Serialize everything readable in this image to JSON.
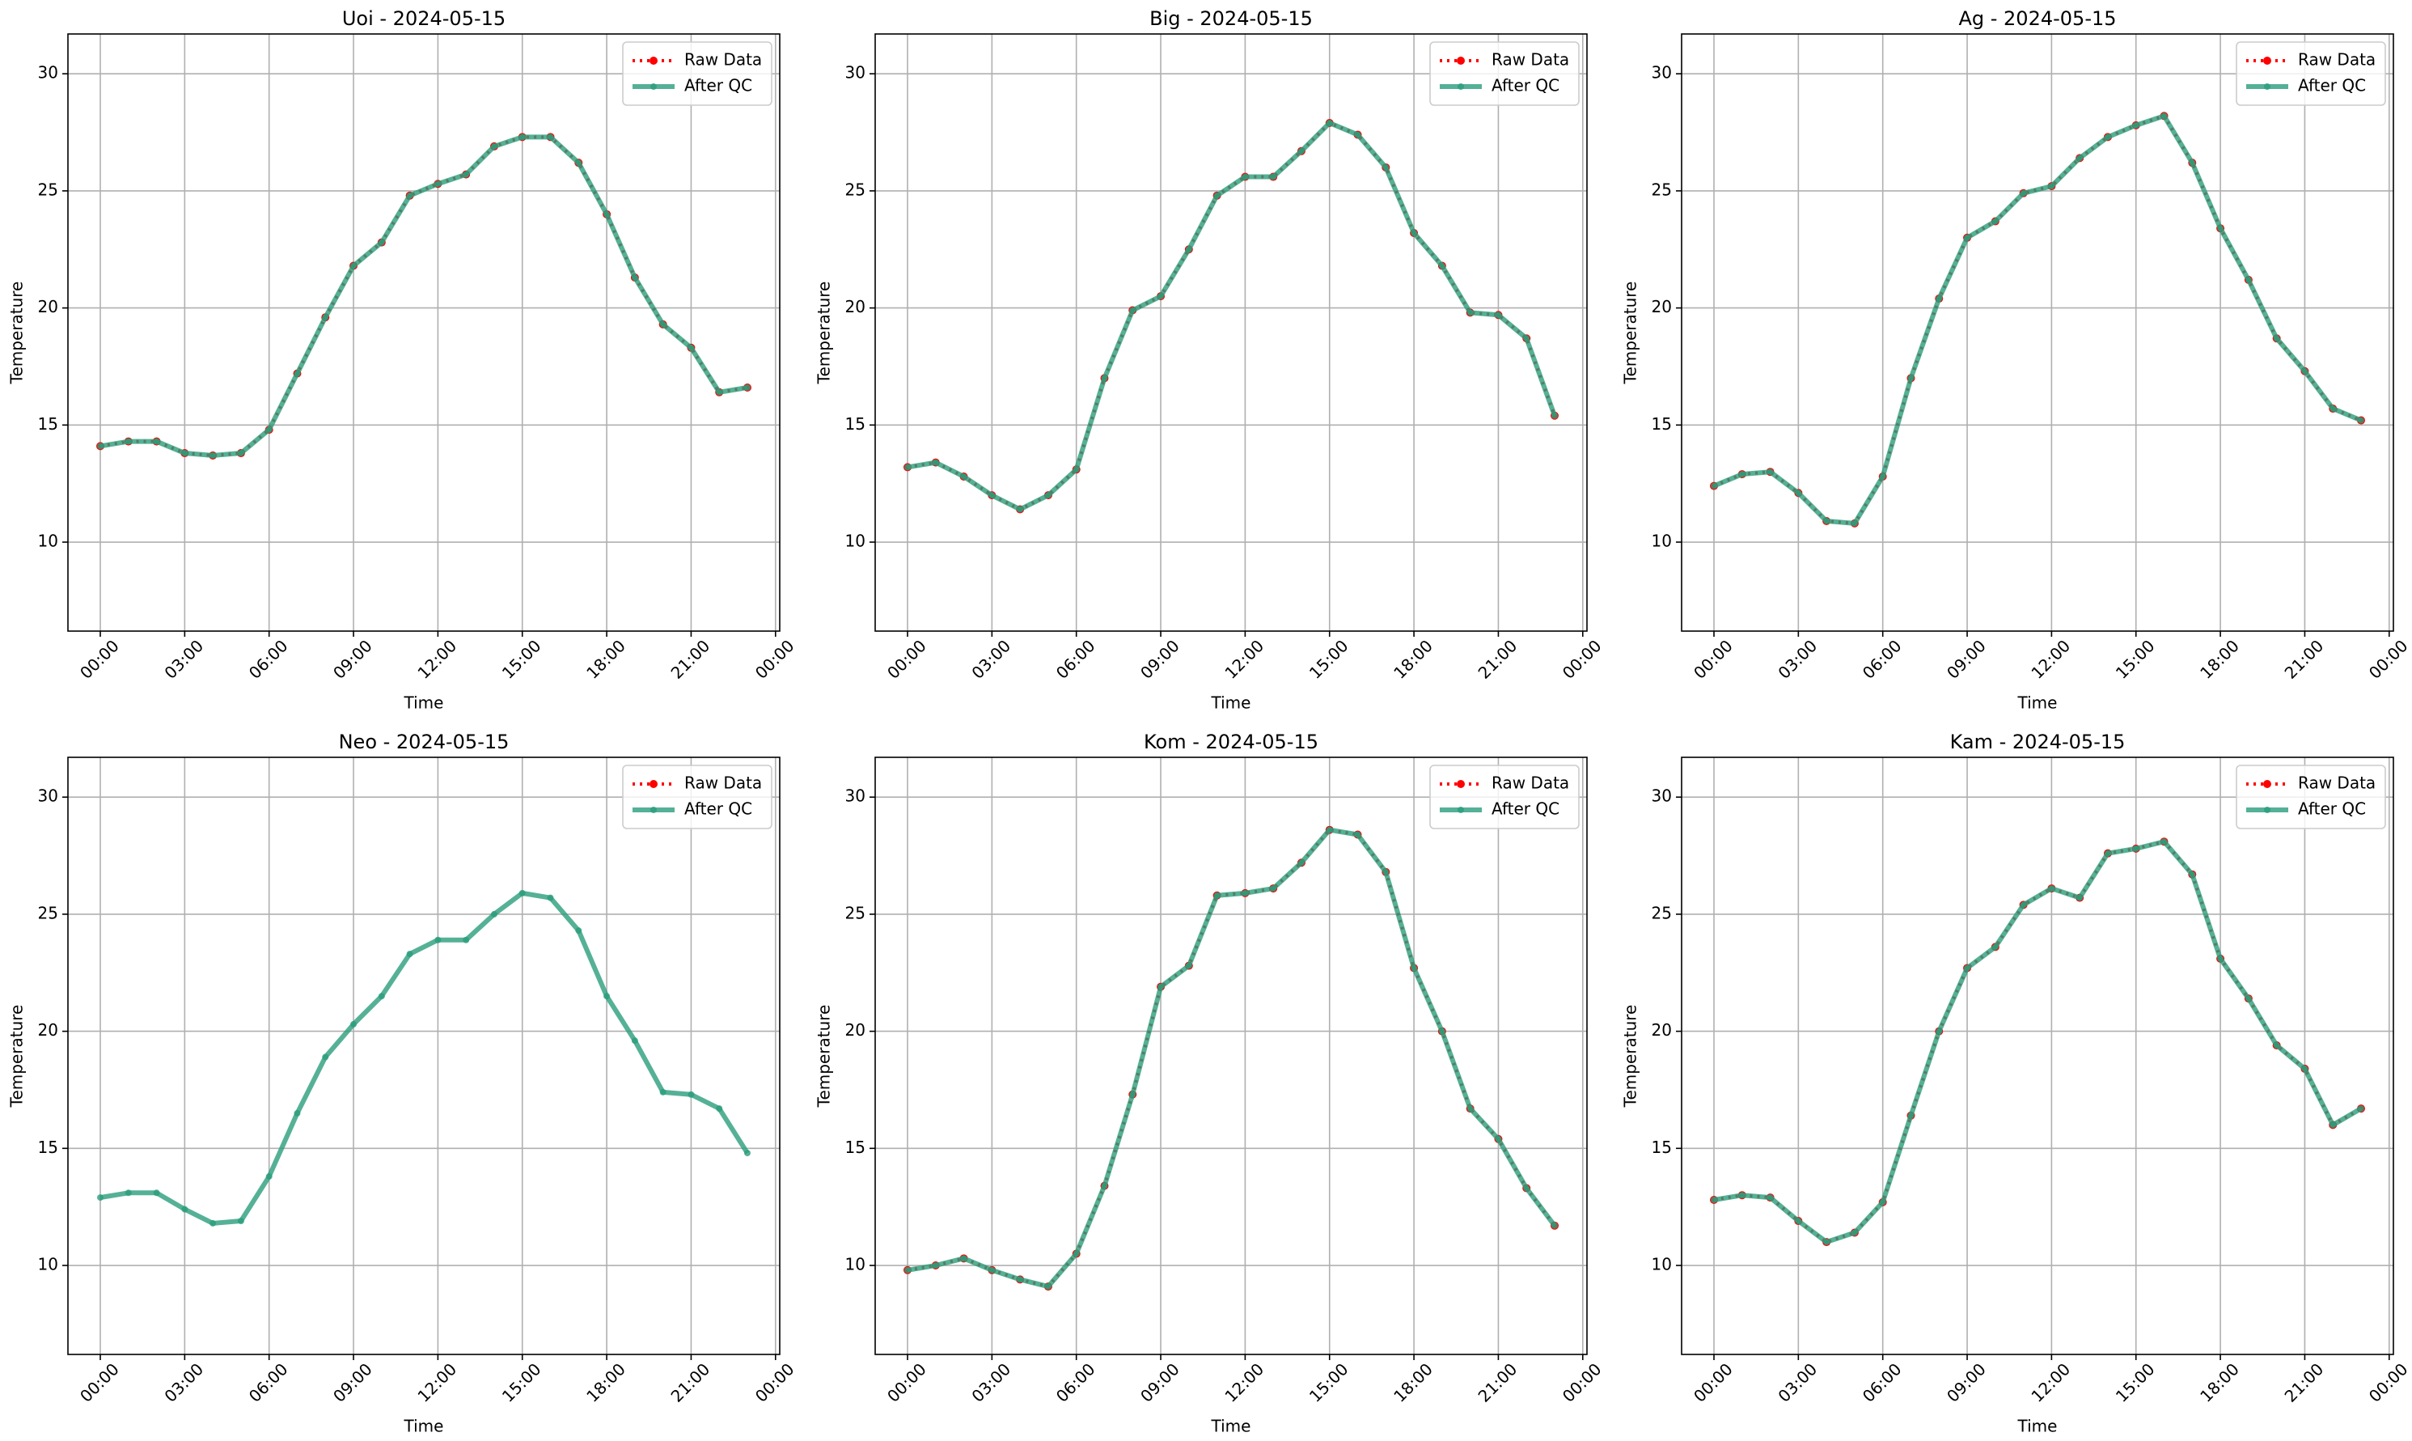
{
  "chart_data": [
    {
      "type": "line",
      "title": "Uoi - 2024-05-15",
      "xlabel": "Time",
      "ylabel": "Temperature",
      "x": [
        0,
        1,
        2,
        3,
        4,
        5,
        6,
        7,
        8,
        9,
        10,
        11,
        12,
        13,
        14,
        15,
        16,
        17,
        18,
        19,
        20,
        21,
        22,
        23
      ],
      "xlim": [
        -1.15,
        24.15
      ],
      "xticks": [
        {
          "value": 0,
          "label": "00:00"
        },
        {
          "value": 3,
          "label": "03:00"
        },
        {
          "value": 6,
          "label": "06:00"
        },
        {
          "value": 9,
          "label": "09:00"
        },
        {
          "value": 12,
          "label": "12:00"
        },
        {
          "value": 15,
          "label": "15:00"
        },
        {
          "value": 18,
          "label": "18:00"
        },
        {
          "value": 21,
          "label": "21:00"
        },
        {
          "value": 24,
          "label": "00:00"
        }
      ],
      "ylim": [
        6.2,
        31.7
      ],
      "yticks": [
        10,
        15,
        20,
        25,
        30
      ],
      "grid": true,
      "legend": "upper right",
      "series": [
        {
          "name": "Raw Data",
          "color": "#ff0000",
          "values": [
            14.1,
            14.3,
            14.3,
            13.8,
            13.7,
            13.8,
            14.8,
            17.2,
            19.6,
            21.8,
            22.8,
            24.8,
            25.3,
            25.7,
            26.9,
            27.3,
            27.3,
            26.2,
            24.0,
            21.3,
            19.3,
            18.3,
            16.4,
            16.6
          ]
        },
        {
          "name": "After QC",
          "color": "#2a9d7c",
          "values": [
            14.1,
            14.3,
            14.3,
            13.8,
            13.7,
            13.8,
            14.8,
            17.2,
            19.6,
            21.8,
            22.8,
            24.8,
            25.3,
            25.7,
            26.9,
            27.3,
            27.3,
            26.2,
            24.0,
            21.3,
            19.3,
            18.3,
            16.4,
            16.6
          ]
        }
      ]
    },
    {
      "type": "line",
      "title": "Big - 2024-05-15",
      "xlabel": "Time",
      "ylabel": "Temperature",
      "x": [
        0,
        1,
        2,
        3,
        4,
        5,
        6,
        7,
        8,
        9,
        10,
        11,
        12,
        13,
        14,
        15,
        16,
        17,
        18,
        19,
        20,
        21,
        22,
        23
      ],
      "xlim": [
        -1.15,
        24.15
      ],
      "xticks": [
        {
          "value": 0,
          "label": "00:00"
        },
        {
          "value": 3,
          "label": "03:00"
        },
        {
          "value": 6,
          "label": "06:00"
        },
        {
          "value": 9,
          "label": "09:00"
        },
        {
          "value": 12,
          "label": "12:00"
        },
        {
          "value": 15,
          "label": "15:00"
        },
        {
          "value": 18,
          "label": "18:00"
        },
        {
          "value": 21,
          "label": "21:00"
        },
        {
          "value": 24,
          "label": "00:00"
        }
      ],
      "ylim": [
        6.2,
        31.7
      ],
      "yticks": [
        10,
        15,
        20,
        25,
        30
      ],
      "grid": true,
      "legend": "upper right",
      "series": [
        {
          "name": "Raw Data",
          "color": "#ff0000",
          "values": [
            13.2,
            13.4,
            12.8,
            12.0,
            11.4,
            12.0,
            13.1,
            17.0,
            19.9,
            20.5,
            22.5,
            24.8,
            25.6,
            25.6,
            26.7,
            27.9,
            27.4,
            26.0,
            23.2,
            21.8,
            19.8,
            19.7,
            18.7,
            15.4
          ]
        },
        {
          "name": "After QC",
          "color": "#2a9d7c",
          "values": [
            13.2,
            13.4,
            12.8,
            12.0,
            11.4,
            12.0,
            13.1,
            17.0,
            19.9,
            20.5,
            22.5,
            24.8,
            25.6,
            25.6,
            26.7,
            27.9,
            27.4,
            26.0,
            23.2,
            21.8,
            19.8,
            19.7,
            18.7,
            15.4
          ]
        }
      ]
    },
    {
      "type": "line",
      "title": "Ag - 2024-05-15",
      "xlabel": "Time",
      "ylabel": "Temperature",
      "x": [
        0,
        1,
        2,
        3,
        4,
        5,
        6,
        7,
        8,
        9,
        10,
        11,
        12,
        13,
        14,
        15,
        16,
        17,
        18,
        19,
        20,
        21,
        22,
        23
      ],
      "xlim": [
        -1.15,
        24.15
      ],
      "xticks": [
        {
          "value": 0,
          "label": "00:00"
        },
        {
          "value": 3,
          "label": "03:00"
        },
        {
          "value": 6,
          "label": "06:00"
        },
        {
          "value": 9,
          "label": "09:00"
        },
        {
          "value": 12,
          "label": "12:00"
        },
        {
          "value": 15,
          "label": "15:00"
        },
        {
          "value": 18,
          "label": "18:00"
        },
        {
          "value": 21,
          "label": "21:00"
        },
        {
          "value": 24,
          "label": "00:00"
        }
      ],
      "ylim": [
        6.2,
        31.7
      ],
      "yticks": [
        10,
        15,
        20,
        25,
        30
      ],
      "grid": true,
      "legend": "upper right",
      "series": [
        {
          "name": "Raw Data",
          "color": "#ff0000",
          "values": [
            12.4,
            12.9,
            13.0,
            12.1,
            10.9,
            10.8,
            12.8,
            17.0,
            20.4,
            23.0,
            23.7,
            24.9,
            25.2,
            26.4,
            27.3,
            27.8,
            28.2,
            26.2,
            23.4,
            21.2,
            18.7,
            17.3,
            15.7,
            15.2
          ]
        },
        {
          "name": "After QC",
          "color": "#2a9d7c",
          "values": [
            12.4,
            12.9,
            13.0,
            12.1,
            10.9,
            10.8,
            12.8,
            17.0,
            20.4,
            23.0,
            23.7,
            24.9,
            25.2,
            26.4,
            27.3,
            27.8,
            28.2,
            26.2,
            23.4,
            21.2,
            18.7,
            17.3,
            15.7,
            15.2
          ]
        }
      ]
    },
    {
      "type": "line",
      "title": "Neo - 2024-05-15",
      "xlabel": "Time",
      "ylabel": "Temperature",
      "x": [
        0,
        1,
        2,
        3,
        4,
        5,
        6,
        7,
        8,
        9,
        10,
        11,
        12,
        13,
        14,
        15,
        16,
        17,
        18,
        19,
        20,
        21,
        22,
        23
      ],
      "xlim": [
        -1.15,
        24.15
      ],
      "xticks": [
        {
          "value": 0,
          "label": "00:00"
        },
        {
          "value": 3,
          "label": "03:00"
        },
        {
          "value": 6,
          "label": "06:00"
        },
        {
          "value": 9,
          "label": "09:00"
        },
        {
          "value": 12,
          "label": "12:00"
        },
        {
          "value": 15,
          "label": "15:00"
        },
        {
          "value": 18,
          "label": "18:00"
        },
        {
          "value": 21,
          "label": "21:00"
        },
        {
          "value": 24,
          "label": "00:00"
        }
      ],
      "ylim": [
        6.2,
        31.7
      ],
      "yticks": [
        10,
        15,
        20,
        25,
        30
      ],
      "grid": true,
      "legend": "upper right",
      "series": [
        {
          "name": "Raw Data",
          "color": "#ff0000",
          "values": [
            null,
            null,
            null,
            null,
            null,
            null,
            null,
            null,
            null,
            null,
            null,
            null,
            null,
            null,
            null,
            null,
            null,
            null,
            null,
            null,
            null,
            null,
            null,
            null
          ]
        },
        {
          "name": "After QC",
          "color": "#2a9d7c",
          "values": [
            12.9,
            13.1,
            13.1,
            12.4,
            11.8,
            11.9,
            13.8,
            16.5,
            18.9,
            20.3,
            21.5,
            23.3,
            23.9,
            23.9,
            25.0,
            25.9,
            25.7,
            24.3,
            21.5,
            19.6,
            17.4,
            17.3,
            16.7,
            14.8
          ]
        }
      ]
    },
    {
      "type": "line",
      "title": "Kom - 2024-05-15",
      "xlabel": "Time",
      "ylabel": "Temperature",
      "x": [
        0,
        1,
        2,
        3,
        4,
        5,
        6,
        7,
        8,
        9,
        10,
        11,
        12,
        13,
        14,
        15,
        16,
        17,
        18,
        19,
        20,
        21,
        22,
        23
      ],
      "xlim": [
        -1.15,
        24.15
      ],
      "xticks": [
        {
          "value": 0,
          "label": "00:00"
        },
        {
          "value": 3,
          "label": "03:00"
        },
        {
          "value": 6,
          "label": "06:00"
        },
        {
          "value": 9,
          "label": "09:00"
        },
        {
          "value": 12,
          "label": "12:00"
        },
        {
          "value": 15,
          "label": "15:00"
        },
        {
          "value": 18,
          "label": "18:00"
        },
        {
          "value": 21,
          "label": "21:00"
        },
        {
          "value": 24,
          "label": "00:00"
        }
      ],
      "ylim": [
        6.2,
        31.7
      ],
      "yticks": [
        10,
        15,
        20,
        25,
        30
      ],
      "grid": true,
      "legend": "upper right",
      "series": [
        {
          "name": "Raw Data",
          "color": "#ff0000",
          "values": [
            9.8,
            10.0,
            10.3,
            9.8,
            9.4,
            9.1,
            10.5,
            13.4,
            17.3,
            21.9,
            22.8,
            25.8,
            25.9,
            26.1,
            27.2,
            28.6,
            28.4,
            26.8,
            22.7,
            20.0,
            16.7,
            15.4,
            13.3,
            11.7
          ]
        },
        {
          "name": "After QC",
          "color": "#2a9d7c",
          "values": [
            9.8,
            10.0,
            10.3,
            9.8,
            9.4,
            9.1,
            10.5,
            13.4,
            17.3,
            21.9,
            22.8,
            25.8,
            25.9,
            26.1,
            27.2,
            28.6,
            28.4,
            26.8,
            22.7,
            20.0,
            16.7,
            15.4,
            13.3,
            11.7
          ]
        }
      ]
    },
    {
      "type": "line",
      "title": "Kam - 2024-05-15",
      "xlabel": "Time",
      "ylabel": "Temperature",
      "x": [
        0,
        1,
        2,
        3,
        4,
        5,
        6,
        7,
        8,
        9,
        10,
        11,
        12,
        13,
        14,
        15,
        16,
        17,
        18,
        19,
        20,
        21,
        22,
        23
      ],
      "xlim": [
        -1.15,
        24.15
      ],
      "xticks": [
        {
          "value": 0,
          "label": "00:00"
        },
        {
          "value": 3,
          "label": "03:00"
        },
        {
          "value": 6,
          "label": "06:00"
        },
        {
          "value": 9,
          "label": "09:00"
        },
        {
          "value": 12,
          "label": "12:00"
        },
        {
          "value": 15,
          "label": "15:00"
        },
        {
          "value": 18,
          "label": "18:00"
        },
        {
          "value": 21,
          "label": "21:00"
        },
        {
          "value": 24,
          "label": "00:00"
        }
      ],
      "ylim": [
        6.2,
        31.7
      ],
      "yticks": [
        10,
        15,
        20,
        25,
        30
      ],
      "grid": true,
      "legend": "upper right",
      "series": [
        {
          "name": "Raw Data",
          "color": "#ff0000",
          "values": [
            12.8,
            13.0,
            12.9,
            11.9,
            11.0,
            11.4,
            12.7,
            16.4,
            20.0,
            22.7,
            23.6,
            25.4,
            26.1,
            25.7,
            27.6,
            27.8,
            28.1,
            26.7,
            23.1,
            21.4,
            19.4,
            18.4,
            16.0,
            16.7
          ]
        },
        {
          "name": "After QC",
          "color": "#2a9d7c",
          "values": [
            12.8,
            13.0,
            12.9,
            11.9,
            11.0,
            11.4,
            12.7,
            16.4,
            20.0,
            22.7,
            23.6,
            25.4,
            26.1,
            25.7,
            27.6,
            27.8,
            28.1,
            26.7,
            23.1,
            21.4,
            19.4,
            18.4,
            16.0,
            16.7
          ]
        }
      ]
    }
  ]
}
